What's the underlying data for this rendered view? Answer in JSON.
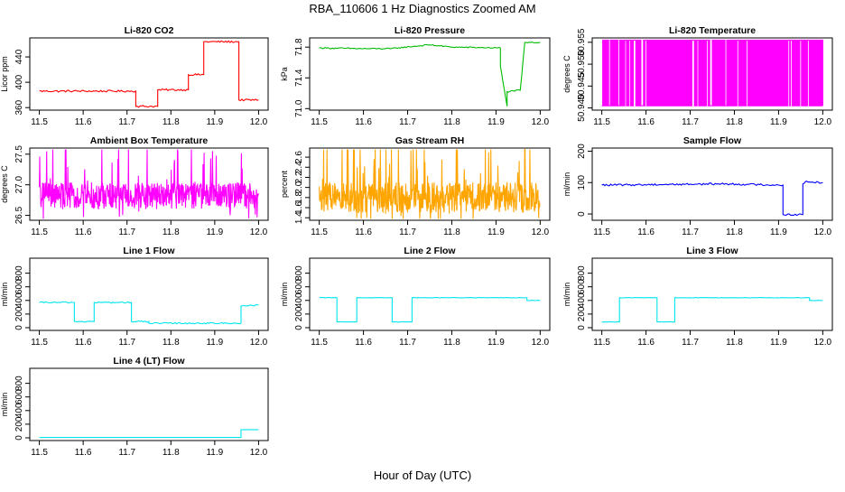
{
  "figure": {
    "title": "RBA_110606  1 Hz Diagnostics Zoomed AM",
    "xlabel": "Hour of Day (UTC)"
  },
  "chart_data": [
    {
      "type": "line",
      "title": "Li-820 CO2",
      "ylabel": "Licor ppm",
      "color": "#ff0000",
      "xlim": [
        11.5,
        12.0
      ],
      "ylim": [
        356,
        470
      ],
      "xticks": [
        11.5,
        11.6,
        11.7,
        11.8,
        11.9,
        12.0
      ],
      "yticks": [
        360,
        400,
        440
      ],
      "style": "steps",
      "noise": 1.5,
      "series": [
        {
          "x": [
            11.5,
            11.72,
            11.72,
            11.77,
            11.77,
            11.84,
            11.84,
            11.875,
            11.875,
            11.955,
            11.955,
            12.0
          ],
          "y": [
            386,
            386,
            362,
            362,
            388,
            388,
            412,
            412,
            464,
            464,
            372,
            372
          ]
        }
      ]
    },
    {
      "type": "line",
      "title": "Li-820 Pressure",
      "ylabel": "kPa",
      "color": "#00bb00",
      "xlim": [
        11.5,
        12.0
      ],
      "ylim": [
        70.98,
        71.92
      ],
      "xticks": [
        11.5,
        11.6,
        11.7,
        11.8,
        11.9,
        12.0
      ],
      "yticks": [
        71.0,
        71.4,
        71.8
      ],
      "style": "steps",
      "noise": 0.008,
      "series": [
        {
          "x": [
            11.5,
            11.6,
            11.66,
            11.75,
            11.8,
            11.91,
            11.91,
            11.925,
            11.925,
            11.955,
            11.955,
            11.965,
            11.965,
            12.0
          ],
          "y": [
            71.79,
            71.78,
            71.78,
            71.83,
            71.8,
            71.79,
            71.55,
            71.03,
            71.22,
            71.24,
            71.24,
            71.85,
            71.86,
            71.86
          ]
        }
      ]
    },
    {
      "type": "line",
      "title": "Li-820 Temperature",
      "ylabel": "degrees C",
      "color": "#ff00ff",
      "xlim": [
        11.5,
        12.0
      ],
      "ylim": [
        50.9395,
        50.956
      ],
      "xticks": [
        11.5,
        11.6,
        11.7,
        11.8,
        11.9,
        12.0
      ],
      "yticks": [
        50.94,
        50.945,
        50.95,
        50.955
      ],
      "style": "toggle",
      "levels": [
        50.9405,
        50.9555
      ],
      "count": 260
    },
    {
      "type": "line",
      "title": "Ambient Box Temperature",
      "ylabel": "degrees C",
      "color": "#ff00ff",
      "xlim": [
        11.5,
        12.0
      ],
      "ylim": [
        26.42,
        27.6
      ],
      "xticks": [
        11.5,
        11.6,
        11.7,
        11.8,
        11.9,
        12.0
      ],
      "yticks": [
        26.5,
        27.0,
        27.5
      ],
      "style": "noisy",
      "center": 26.82,
      "spread": 0.22,
      "spikes": 0.5,
      "count": 600
    },
    {
      "type": "line",
      "title": "Gas Stream RH",
      "ylabel": "percent",
      "color": "#ffa500",
      "xlim": [
        11.5,
        12.0
      ],
      "ylim": [
        1.35,
        2.78
      ],
      "xticks": [
        11.5,
        11.6,
        11.7,
        11.8,
        11.9,
        12.0
      ],
      "yticks": [
        1.4,
        1.6,
        1.8,
        2.0,
        2.2,
        2.4,
        2.6
      ],
      "style": "noisy",
      "center": 1.8,
      "spread": 0.3,
      "spikes": 0.8,
      "count": 600
    },
    {
      "type": "line",
      "title": "Sample Flow",
      "ylabel": "ml/min",
      "color": "#0000ff",
      "xlim": [
        11.5,
        12.0
      ],
      "ylim": [
        -20,
        210
      ],
      "xticks": [
        11.5,
        11.6,
        11.7,
        11.8,
        11.9,
        12.0
      ],
      "yticks": [
        0,
        100,
        200
      ],
      "style": "steps",
      "noise": 3,
      "series": [
        {
          "x": [
            11.5,
            11.77,
            11.91,
            11.91,
            11.955,
            11.955,
            11.96,
            12.0
          ],
          "y": [
            92,
            96,
            92,
            -2,
            -2,
            96,
            102,
            100
          ]
        }
      ]
    },
    {
      "type": "line",
      "title": "Line 1 Flow",
      "ylabel": "ml/min",
      "color": "#00e5ee",
      "xlim": [
        11.5,
        12.0
      ],
      "ylim": [
        -40,
        1020
      ],
      "xticks": [
        11.5,
        11.6,
        11.7,
        11.8,
        11.9,
        12.0
      ],
      "yticks": [
        0,
        200,
        400,
        600,
        800
      ],
      "style": "steps",
      "noise": 10,
      "series": [
        {
          "x": [
            11.5,
            11.58,
            11.58,
            11.625,
            11.625,
            11.71,
            11.71,
            11.75,
            11.75,
            11.96,
            11.96,
            12.0
          ],
          "y": [
            370,
            370,
            90,
            90,
            370,
            370,
            90,
            90,
            65,
            65,
            320,
            330
          ]
        }
      ]
    },
    {
      "type": "line",
      "title": "Line 2 Flow",
      "ylabel": "ml/min",
      "color": "#00e5ee",
      "xlim": [
        11.5,
        12.0
      ],
      "ylim": [
        -40,
        1020
      ],
      "xticks": [
        11.5,
        11.6,
        11.7,
        11.8,
        11.9,
        12.0
      ],
      "yticks": [
        0,
        200,
        400,
        600,
        800
      ],
      "style": "steps",
      "noise": 3,
      "series": [
        {
          "x": [
            11.5,
            11.54,
            11.54,
            11.585,
            11.585,
            11.665,
            11.665,
            11.71,
            11.71,
            11.97,
            11.97,
            12.0
          ],
          "y": [
            440,
            440,
            85,
            85,
            440,
            440,
            85,
            85,
            440,
            440,
            400,
            400
          ]
        }
      ]
    },
    {
      "type": "line",
      "title": "Line 3 Flow",
      "ylabel": "ml/min",
      "color": "#00e5ee",
      "xlim": [
        11.5,
        12.0
      ],
      "ylim": [
        -40,
        1020
      ],
      "xticks": [
        11.5,
        11.6,
        11.7,
        11.8,
        11.9,
        12.0
      ],
      "yticks": [
        0,
        200,
        400,
        600,
        800
      ],
      "style": "steps",
      "noise": 3,
      "series": [
        {
          "x": [
            11.5,
            11.54,
            11.54,
            11.625,
            11.625,
            11.665,
            11.665,
            11.97,
            11.97,
            12.0
          ],
          "y": [
            85,
            85,
            440,
            440,
            85,
            85,
            440,
            440,
            400,
            400
          ]
        }
      ]
    },
    {
      "type": "line",
      "title": "Line 4 (LT) Flow",
      "ylabel": "ml/min",
      "color": "#00e5ee",
      "xlim": [
        11.5,
        12.0
      ],
      "ylim": [
        -40,
        1020
      ],
      "xticks": [
        11.5,
        11.6,
        11.7,
        11.8,
        11.9,
        12.0
      ],
      "yticks": [
        0,
        200,
        400,
        600,
        800
      ],
      "style": "steps",
      "noise": 0,
      "series": [
        {
          "x": [
            11.5,
            11.96,
            11.96,
            12.0
          ],
          "y": [
            5,
            5,
            120,
            120
          ]
        }
      ]
    }
  ]
}
